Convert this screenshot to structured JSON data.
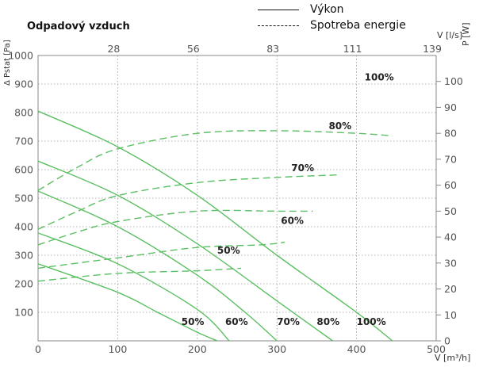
{
  "title": "Odpadový vzduch",
  "legend": {
    "solid_label": "Výkon",
    "dashed_label": "Spotreba energie"
  },
  "colors": {
    "curve": "#5cbf63",
    "grid": "#9a9a9a",
    "axis": "#888888"
  },
  "chart_data": {
    "type": "line",
    "title": "Odpadový vzduch",
    "xlabel": "V [m³/h]",
    "ylabel": "Δ Pstat [Pa]",
    "y2label": "P [W]",
    "x2label": "V [l/s]",
    "xlim": [
      0,
      500
    ],
    "ylim": [
      0,
      1000
    ],
    "y2lim": [
      0,
      110
    ],
    "x_ticks": [
      0,
      100,
      200,
      300,
      400,
      500
    ],
    "y_ticks": [
      100,
      200,
      300,
      400,
      500,
      600,
      700,
      800,
      900,
      1000
    ],
    "y2_ticks": [
      0,
      10,
      20,
      30,
      40,
      50,
      60,
      70,
      80,
      90,
      100
    ],
    "x2_ticks": [
      {
        "label": "28",
        "x": 100
      },
      {
        "label": "56",
        "x": 200
      },
      {
        "label": "83",
        "x": 300
      },
      {
        "label": "111",
        "x": 400
      },
      {
        "label": "139",
        "x": 500
      }
    ],
    "grid": true,
    "pressure_series": [
      {
        "name": "100%",
        "points": [
          [
            0,
            805
          ],
          [
            100,
            680
          ],
          [
            200,
            510
          ],
          [
            300,
            300
          ],
          [
            400,
            100
          ],
          [
            445,
            0
          ]
        ]
      },
      {
        "name": "80%",
        "points": [
          [
            0,
            630
          ],
          [
            100,
            510
          ],
          [
            200,
            340
          ],
          [
            300,
            140
          ],
          [
            370,
            0
          ]
        ]
      },
      {
        "name": "70%",
        "points": [
          [
            0,
            525
          ],
          [
            100,
            400
          ],
          [
            200,
            230
          ],
          [
            260,
            100
          ],
          [
            300,
            0
          ]
        ]
      },
      {
        "name": "60%",
        "points": [
          [
            0,
            378
          ],
          [
            100,
            270
          ],
          [
            200,
            110
          ],
          [
            240,
            0
          ]
        ]
      },
      {
        "name": "50%",
        "points": [
          [
            0,
            270
          ],
          [
            100,
            170
          ],
          [
            150,
            100
          ],
          [
            200,
            30
          ],
          [
            225,
            0
          ]
        ]
      }
    ],
    "power_series": [
      {
        "name": "100%",
        "points": [
          [
            0,
            58
          ],
          [
            50,
            67
          ],
          [
            100,
            74
          ],
          [
            200,
            80
          ],
          [
            300,
            81
          ],
          [
            400,
            80
          ],
          [
            445,
            79
          ]
        ]
      },
      {
        "name": "80%",
        "points": [
          [
            0,
            43
          ],
          [
            50,
            50
          ],
          [
            100,
            56
          ],
          [
            200,
            61
          ],
          [
            300,
            63
          ],
          [
            380,
            64
          ]
        ]
      },
      {
        "name": "70%",
        "points": [
          [
            0,
            37
          ],
          [
            50,
            42
          ],
          [
            100,
            46
          ],
          [
            200,
            50
          ],
          [
            300,
            50
          ],
          [
            345,
            50
          ]
        ]
      },
      {
        "name": "60%",
        "points": [
          [
            0,
            28
          ],
          [
            100,
            32
          ],
          [
            200,
            36
          ],
          [
            280,
            37
          ],
          [
            310,
            38
          ]
        ]
      },
      {
        "name": "50%",
        "points": [
          [
            0,
            23
          ],
          [
            100,
            26
          ],
          [
            200,
            27
          ],
          [
            255,
            28
          ]
        ]
      }
    ],
    "labels": [
      {
        "text": "100%",
        "x": 400,
        "y": 55
      },
      {
        "text": "80%",
        "x": 350,
        "y": 55
      },
      {
        "text": "70%",
        "x": 300,
        "y": 55
      },
      {
        "text": "60%",
        "x": 235,
        "y": 55
      },
      {
        "text": "50%",
        "x": 180,
        "y": 55
      },
      {
        "text": "100%",
        "x": 410,
        "y": 912
      },
      {
        "text": "80%",
        "x": 365,
        "y": 742
      },
      {
        "text": "70%",
        "x": 318,
        "y": 595
      },
      {
        "text": "60%",
        "x": 305,
        "y": 410
      },
      {
        "text": "50%",
        "x": 225,
        "y": 305
      }
    ]
  }
}
